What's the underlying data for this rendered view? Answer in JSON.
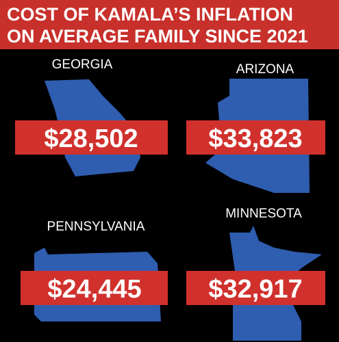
{
  "header": {
    "lines": [
      "COST OF KAMALA’S INFLATION",
      "ON AVERAGE FAMILY SINCE 2021"
    ]
  },
  "states": [
    {
      "name": "GEORGIA",
      "amount": "$28,502"
    },
    {
      "name": "ARIZONA",
      "amount": "$33,823"
    },
    {
      "name": "PENNSYLVANIA",
      "amount": "$24,445"
    },
    {
      "name": "MINNESOTA",
      "amount": "$32,917"
    }
  ]
}
